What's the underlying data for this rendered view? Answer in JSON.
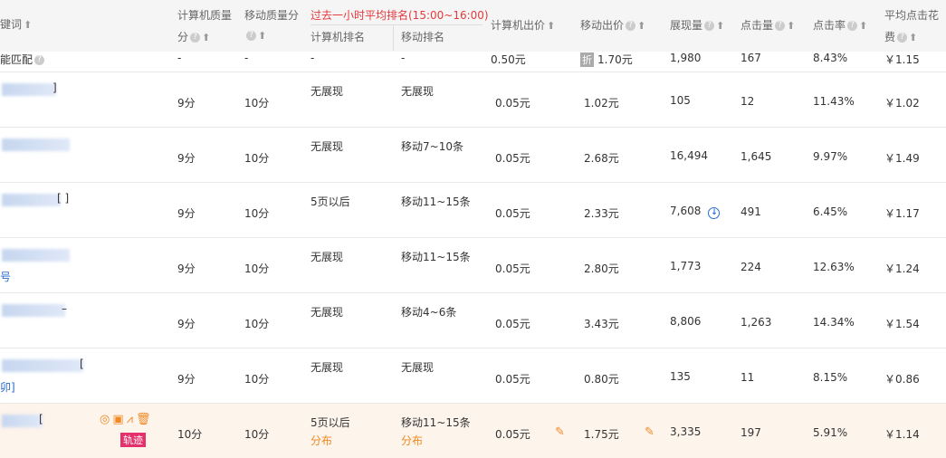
{
  "header": {
    "keyword": "键词",
    "pc_quality_1": "计算机质量",
    "pc_quality_2": "分",
    "mobile_quality": "移动质量分",
    "rank_group": "过去一小时平均排名(15:00~16:00)",
    "pc_rank": "计算机排名",
    "mobile_rank": "移动排名",
    "pc_bid": "计算机出价",
    "mobile_bid": "移动出价",
    "impressions": "展现量",
    "clicks": "点击量",
    "ctr": "点击率",
    "avg_cost_1": "平均点击花",
    "avg_cost_2": "费"
  },
  "smart_row": {
    "keyword": "能匹配",
    "pc_quality": "-",
    "mobile_quality": "-",
    "pc_rank": "-",
    "mobile_rank": "-",
    "pc_bid": "0.50元",
    "discount_badge": "折",
    "mobile_bid": "1.70元",
    "impressions": "1,980",
    "clicks": "167",
    "ctr": "8.43%",
    "avg_cost": "￥1.15"
  },
  "rows": [
    {
      "kw_suffix": "]",
      "pc_quality": "9分",
      "mobile_quality": "10分",
      "pc_rank": "无展现",
      "mobile_rank": "无展现",
      "pc_bid": "0.05元",
      "mobile_bid": "1.02元",
      "impressions": "105",
      "clicks": "12",
      "ctr": "11.43%",
      "avg_cost": "￥1.02"
    },
    {
      "kw_suffix": "",
      "pc_quality": "9分",
      "mobile_quality": "10分",
      "pc_rank": "无展现",
      "mobile_rank": "移动7~10条",
      "pc_bid": "0.05元",
      "mobile_bid": "2.68元",
      "impressions": "16,494",
      "clicks": "1,645",
      "ctr": "9.97%",
      "avg_cost": "￥1.49"
    },
    {
      "kw_suffix": "[ ]",
      "pc_quality": "9分",
      "mobile_quality": "10分",
      "pc_rank": "5页以后",
      "mobile_rank": "移动11~15条",
      "pc_bid": "0.05元",
      "mobile_bid": "2.33元",
      "impressions": "7,608",
      "clicks": "491",
      "ctr": "6.45%",
      "avg_cost": "￥1.17"
    },
    {
      "kw_suffix": "",
      "kw_line2": "号",
      "pc_quality": "9分",
      "mobile_quality": "10分",
      "pc_rank": "无展现",
      "mobile_rank": "移动11~15条",
      "pc_bid": "0.05元",
      "mobile_bid": "2.80元",
      "impressions": "1,773",
      "clicks": "224",
      "ctr": "12.63%",
      "avg_cost": "￥1.24"
    },
    {
      "kw_suffix": "–",
      "pc_quality": "9分",
      "mobile_quality": "10分",
      "pc_rank": "无展现",
      "mobile_rank": "移动4~6条",
      "pc_bid": "0.05元",
      "mobile_bid": "3.43元",
      "impressions": "8,806",
      "clicks": "1,263",
      "ctr": "14.34%",
      "avg_cost": "￥1.54"
    },
    {
      "kw_suffix": "[",
      "kw_line2": "卯]",
      "pc_quality": "9分",
      "mobile_quality": "10分",
      "pc_rank": "无展现",
      "mobile_rank": "无展现",
      "pc_bid": "0.05元",
      "mobile_bid": "0.80元",
      "impressions": "135",
      "clicks": "11",
      "ctr": "8.15%",
      "avg_cost": "￥0.86"
    },
    {
      "kw_suffix": "[",
      "badge": "轨迹",
      "pc_quality": "10分",
      "mobile_quality": "10分",
      "pc_rank": "5页以后",
      "pc_rank_link": "分布",
      "mobile_rank": "移动11~15条",
      "mobile_rank_link": "分布",
      "pc_bid": "0.05元",
      "mobile_bid": "1.75元",
      "impressions": "3,335",
      "clicks": "197",
      "ctr": "5.91%",
      "avg_cost": "￥1.14"
    }
  ]
}
